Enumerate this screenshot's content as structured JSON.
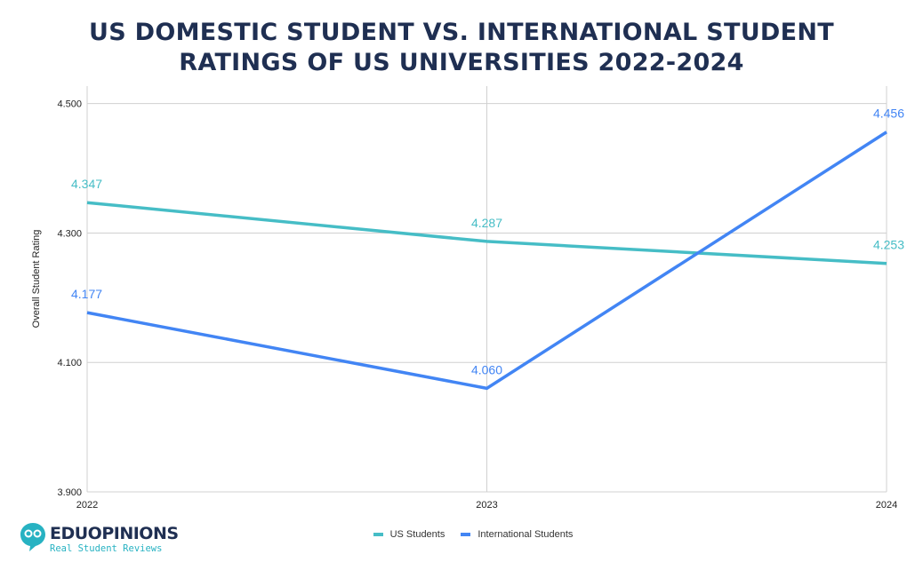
{
  "title_line1": "US DOMESTIC STUDENT VS. INTERNATIONAL STUDENT",
  "title_line2": "RATINGS OF US UNIVERSITIES 2022-2024",
  "logo": {
    "brand": "EDUOPINIONS",
    "tagline": "Real Student Reviews"
  },
  "chart_data": {
    "type": "line",
    "title": "US DOMESTIC STUDENT VS. INTERNATIONAL STUDENT RATINGS OF US UNIVERSITIES 2022-2024",
    "xlabel": "",
    "ylabel": "Overall Student Rating",
    "categories": [
      "2022",
      "2023",
      "2024"
    ],
    "ylim": [
      3.9,
      4.527
    ],
    "yticks": [
      "3.900",
      "4.100",
      "4.300",
      "4.500"
    ],
    "grid": true,
    "legend": "bottom",
    "series": [
      {
        "name": "US Students",
        "values": [
          4.347,
          4.287,
          4.253
        ],
        "labels": [
          "4.347",
          "4.287",
          "4.253"
        ],
        "color": "#46BDC6"
      },
      {
        "name": "International Students",
        "values": [
          4.177,
          4.06,
          4.456
        ],
        "labels": [
          "4.177",
          "4.060",
          "4.456"
        ],
        "color": "#4285F4"
      }
    ]
  }
}
